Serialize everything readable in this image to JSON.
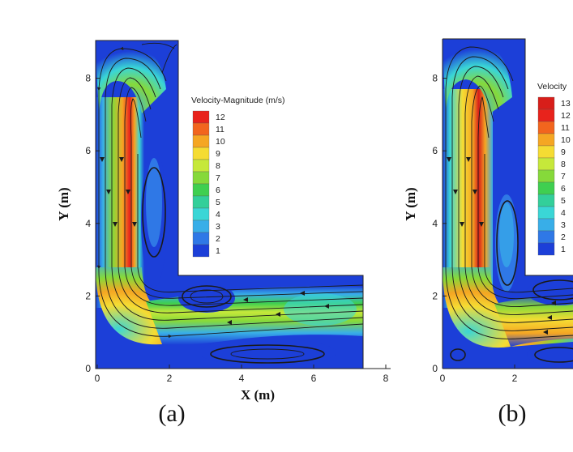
{
  "chart_data": [
    {
      "type": "heatmap",
      "panel_label": "(a)",
      "xlabel": "X (m)",
      "ylabel": "Y (m)",
      "x_ticks": [
        "0",
        "2",
        "4",
        "6",
        "8"
      ],
      "y_ticks": [
        "0",
        "2",
        "4",
        "6",
        "8"
      ],
      "xlim": [
        0,
        8
      ],
      "ylim": [
        0,
        9
      ],
      "legend_title": "Velocity-Magnitude (m/s)",
      "legend_levels": [
        "12",
        "11",
        "10",
        "9",
        "8",
        "7",
        "6",
        "5",
        "4",
        "3",
        "2",
        "1"
      ],
      "legend_colors": [
        "#e8231c",
        "#f2651e",
        "#f5a623",
        "#f5dc33",
        "#c6e83a",
        "#86d93a",
        "#3fcf50",
        "#33cf9a",
        "#3ad6d6",
        "#38aee8",
        "#2f78e6",
        "#1c3fd8"
      ],
      "domain_shape": "L",
      "domain": {
        "vertical_arm_x": [
          0,
          2
        ],
        "vertical_arm_y": [
          0,
          9
        ],
        "horizontal_arm_x": [
          0,
          7.4
        ],
        "horizontal_arm_y": [
          0,
          2.6
        ]
      }
    },
    {
      "type": "heatmap",
      "panel_label": "(b)",
      "xlabel": "",
      "ylabel": "Y (m)",
      "x_ticks": [
        "0",
        "2"
      ],
      "y_ticks": [
        "0",
        "2",
        "4",
        "6",
        "8"
      ],
      "ylim": [
        0,
        9
      ],
      "legend_title": "Velocity",
      "legend_levels": [
        "13",
        "12",
        "11",
        "10",
        "9",
        "8",
        "7",
        "6",
        "5",
        "4",
        "3",
        "2",
        "1"
      ],
      "legend_colors": [
        "#d81e1a",
        "#e8231c",
        "#f2651e",
        "#f5a623",
        "#f5dc33",
        "#c6e83a",
        "#86d93a",
        "#3fcf50",
        "#33cf9a",
        "#3ad6d6",
        "#38aee8",
        "#2f78e6",
        "#1c3fd8"
      ],
      "domain_shape": "L"
    }
  ]
}
